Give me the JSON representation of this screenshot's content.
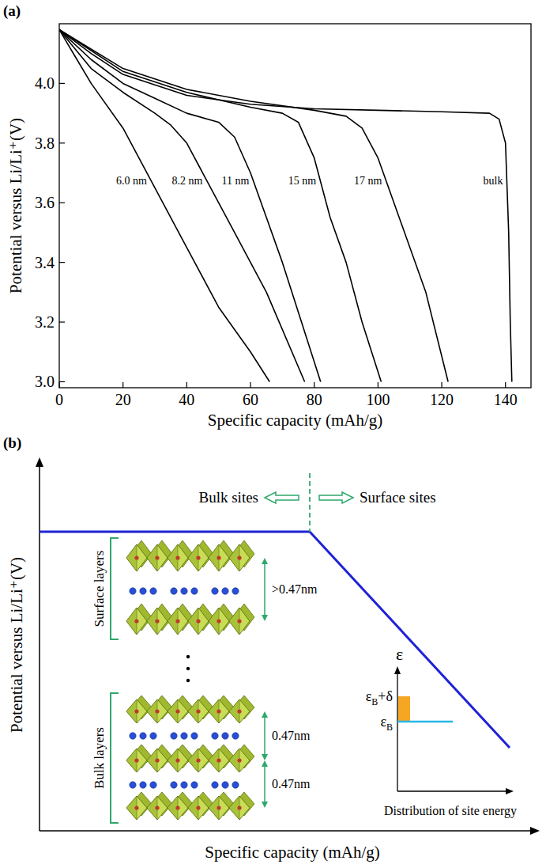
{
  "chart_data": {
    "type": "line",
    "panel": "(a)",
    "x_label": "Specific capacity (mAh/g)",
    "y_label": "Potential versus Li/Li⁺(V)",
    "xlim": [
      0,
      148
    ],
    "ylim": [
      2.98,
      4.2
    ],
    "xticks": [
      0,
      20,
      40,
      60,
      80,
      100,
      120,
      140
    ],
    "yticks": [
      {
        "value": 3,
        "label": "3.0"
      },
      {
        "value": 3.2,
        "label": "3.2"
      },
      {
        "value": 3.4,
        "label": "3.4"
      },
      {
        "value": 3.6,
        "label": "3.6"
      },
      {
        "value": 3.8,
        "label": "3.8"
      },
      {
        "value": 4,
        "label": "4.0"
      }
    ],
    "grid": false,
    "series": [
      {
        "name": "6.0 nm",
        "color": "#000000",
        "x": [
          0,
          5,
          10,
          20,
          30,
          40,
          50,
          60,
          66
        ],
        "values": [
          4.18,
          4.09,
          4.0,
          3.85,
          3.65,
          3.45,
          3.25,
          3.1,
          3.0
        ]
      },
      {
        "name": "8.2 nm",
        "color": "#000000",
        "x": [
          0,
          10,
          20,
          30,
          35,
          40,
          45,
          55,
          65,
          77
        ],
        "values": [
          4.18,
          4.05,
          3.97,
          3.9,
          3.86,
          3.8,
          3.7,
          3.5,
          3.3,
          3.0
        ]
      },
      {
        "name": "11 nm",
        "color": "#000000",
        "x": [
          0,
          10,
          20,
          30,
          40,
          50,
          55,
          60,
          65,
          70,
          76,
          82
        ],
        "values": [
          4.18,
          4.08,
          4.0,
          3.95,
          3.9,
          3.87,
          3.82,
          3.7,
          3.55,
          3.4,
          3.2,
          3.0
        ]
      },
      {
        "name": "15 nm",
        "color": "#000000",
        "x": [
          0,
          20,
          40,
          60,
          70,
          75,
          80,
          85,
          90,
          95,
          101
        ],
        "values": [
          4.18,
          4.04,
          3.97,
          3.92,
          3.9,
          3.87,
          3.75,
          3.55,
          3.4,
          3.2,
          3.0
        ]
      },
      {
        "name": "17 nm",
        "color": "#000000",
        "x": [
          0,
          20,
          40,
          60,
          80,
          90,
          95,
          100,
          105,
          110,
          115,
          122
        ],
        "values": [
          4.18,
          4.05,
          3.98,
          3.94,
          3.91,
          3.89,
          3.85,
          3.75,
          3.6,
          3.45,
          3.3,
          3.0
        ]
      },
      {
        "name": "bulk",
        "color": "#000000",
        "x": [
          0,
          10,
          20,
          40,
          60,
          80,
          100,
          120,
          135,
          138,
          140,
          141,
          141.5,
          142
        ],
        "values": [
          4.18,
          4.1,
          4.03,
          3.96,
          3.93,
          3.915,
          3.91,
          3.905,
          3.9,
          3.88,
          3.8,
          3.5,
          3.2,
          3.0
        ]
      }
    ]
  },
  "diagram": {
    "panel": "(b)",
    "x_label": "Specific capacity (mAh/g)",
    "y_label": "Potential versus Li/Li⁺(V)",
    "regions": [
      "Bulk sites",
      "Surface sites"
    ],
    "layers": [
      {
        "label": "Surface layers",
        "spacings": [
          ">0.47nm"
        ]
      },
      {
        "label": "Bulk layers",
        "spacings": [
          "0.47nm",
          "0.47nm"
        ]
      }
    ],
    "inset": {
      "axis_symbol": "ε",
      "levels": [
        {
          "symbol": "ε",
          "sub": "B",
          "suffix": "+δ"
        },
        {
          "symbol": "ε",
          "sub": "B"
        }
      ],
      "caption": "Distribution of site energy"
    }
  }
}
